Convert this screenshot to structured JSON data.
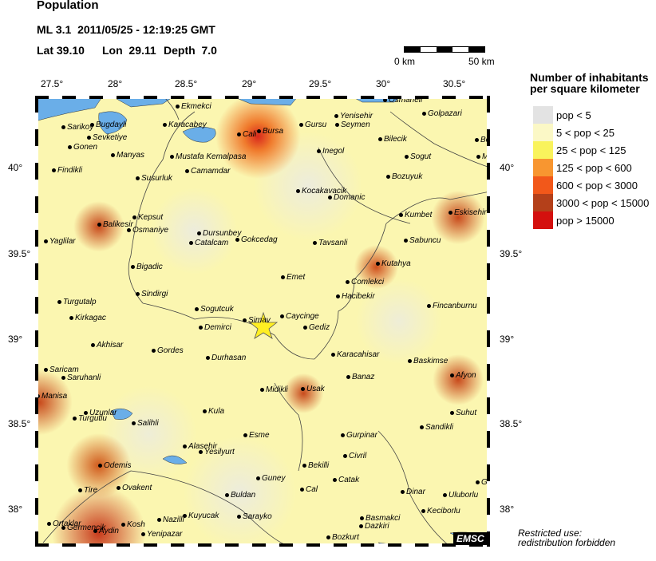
{
  "header": {
    "title": "Population",
    "event": "ML 3.1  2011/05/25 - 12:19:25 GMT",
    "lat_label": "Lat 39.10",
    "lon_label": "Lon  29.11",
    "depth_label": "Depth  7.0"
  },
  "scale_bar": {
    "start": "0 km",
    "end": "50 km"
  },
  "axes": {
    "lon_ticks": [
      "27.5°",
      "28°",
      "28.5°",
      "29°",
      "29.5°",
      "30°",
      "30.5°"
    ],
    "lat_ticks": [
      "40°",
      "39.5°",
      "39°",
      "38.5°",
      "38°"
    ]
  },
  "legend": {
    "title_line1": "Number of inhabitants",
    "title_line2": "per square kilometer",
    "items": [
      {
        "label": "pop < 5",
        "color": "#e3e3e3"
      },
      {
        "label": "5 < pop < 25",
        "color": "#fbf8c6"
      },
      {
        "label": "25 < pop < 125",
        "color": "#f9f35c"
      },
      {
        "label": "125 < pop < 600",
        "color": "#f89630"
      },
      {
        "label": "600 < pop < 3000",
        "color": "#f2581a"
      },
      {
        "label": "3000 < pop < 15000",
        "color": "#b4401a"
      },
      {
        "label": "pop > 15000",
        "color": "#d4100e"
      }
    ]
  },
  "epicenter": {
    "icon": "star-icon",
    "color": "#ffee22"
  },
  "water_color": "#6aaee8",
  "cities": [
    "Ekmekci",
    "Sarikoy",
    "Bugdayli",
    "Karacabey",
    "Cali",
    "Bursa",
    "Gursu",
    "Seymen",
    "Yenisehir",
    "Osmaneli",
    "Golpazari",
    "Gonen",
    "Sevketiye",
    "Manyas",
    "Bilecik",
    "Be",
    "Inegol",
    "Mustafa Kemalpasa",
    "Sogut",
    "Mihalg",
    "Findikli",
    "Susurluk",
    "Camamdar",
    "Bozuyuk",
    "Kocakavacik",
    "Domanic",
    "Eskisehir",
    "Kumbet",
    "Balikesir",
    "Kepsut",
    "Osmaniye",
    "Dursunbey",
    "Catalcam",
    "Gokcedag",
    "Tavsanli",
    "Sabuncu",
    "Yaglilar",
    "Kutahya",
    "Bigadic",
    "Emet",
    "Comlekci",
    "Sindirgi",
    "Hacibekir",
    "Turgutalp",
    "Sogutcuk",
    "Fincanburnu",
    "Kirkagac",
    "Simav",
    "Caycinge",
    "Gediz",
    "Demirci",
    "Akhisar",
    "Gordes",
    "Karacahisar",
    "Durhasan",
    "Baskimse",
    "Saricam",
    "Saruhanli",
    "Banaz",
    "Afyon",
    "Midikli",
    "Usak",
    "Manisa",
    "Uzunlar",
    "Turgutlu",
    "Salihli",
    "Kula",
    "Suhut",
    "Esme",
    "Sandikli",
    "Gurpinar",
    "Alasehir",
    "Yesilyurt",
    "Civril",
    "Odemis",
    "Bekilli",
    "Guney",
    "Catak",
    "Cal",
    "Tire",
    "Ovakent",
    "Buldan",
    "Dinar",
    "Uluborlu",
    "Go",
    "Keciborlu",
    "Basmakci",
    "Dazkiri",
    "Ortaklar",
    "Germencik",
    "Aydin",
    "Kosh",
    "Nazilli",
    "Kuyucak",
    "Yenipazar",
    "Sarayko",
    "Bozkurt"
  ],
  "logo": "EMSC",
  "notice_line1": "Restricted use:",
  "notice_line2": "redistribution forbidden"
}
